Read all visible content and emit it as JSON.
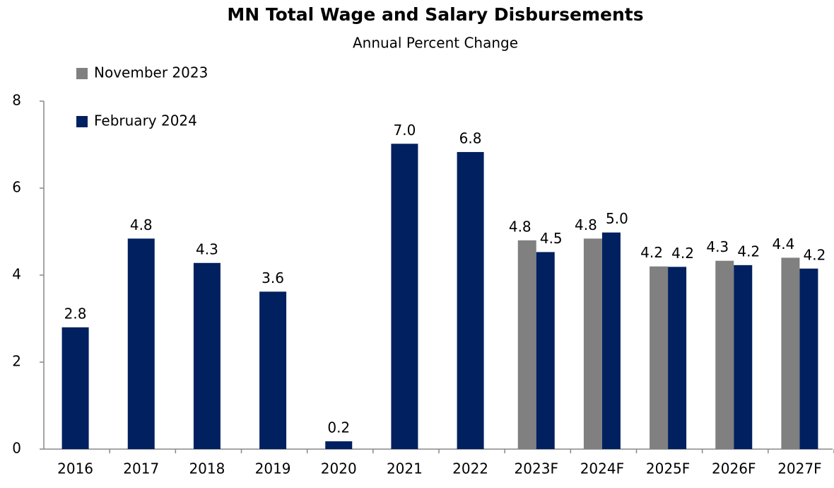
{
  "chart_data": {
    "type": "bar",
    "title": "MN Total Wage and Salary Disbursements",
    "subtitle": "Annual Percent Change",
    "categories": [
      "2016",
      "2017",
      "2018",
      "2019",
      "2020",
      "2021",
      "2022",
      "2023F",
      "2024F",
      "2025F",
      "2026F",
      "2027F"
    ],
    "series": [
      {
        "name": "November 2023",
        "color": "#808080",
        "values": [
          null,
          null,
          null,
          null,
          null,
          null,
          null,
          4.8,
          4.84,
          4.2,
          4.33,
          4.4
        ],
        "value_labels": [
          null,
          null,
          null,
          null,
          null,
          null,
          null,
          "4.8",
          "4.8",
          "4.2",
          "4.3",
          "4.4"
        ]
      },
      {
        "name": "February 2024",
        "color": "#002060",
        "values": [
          2.8,
          4.84,
          4.28,
          3.62,
          0.18,
          7.02,
          6.83,
          4.53,
          4.98,
          4.19,
          4.23,
          4.15
        ],
        "value_labels": [
          "2.8",
          "4.8",
          "4.3",
          "3.6",
          "0.2",
          "7.0",
          "6.8",
          "4.5",
          "5.0",
          "4.2",
          "4.2",
          "4.2"
        ]
      }
    ],
    "ylim": [
      0,
      8
    ],
    "yticks": [
      0,
      2,
      4,
      6,
      8
    ],
    "grid": false,
    "legend": "top-left"
  }
}
